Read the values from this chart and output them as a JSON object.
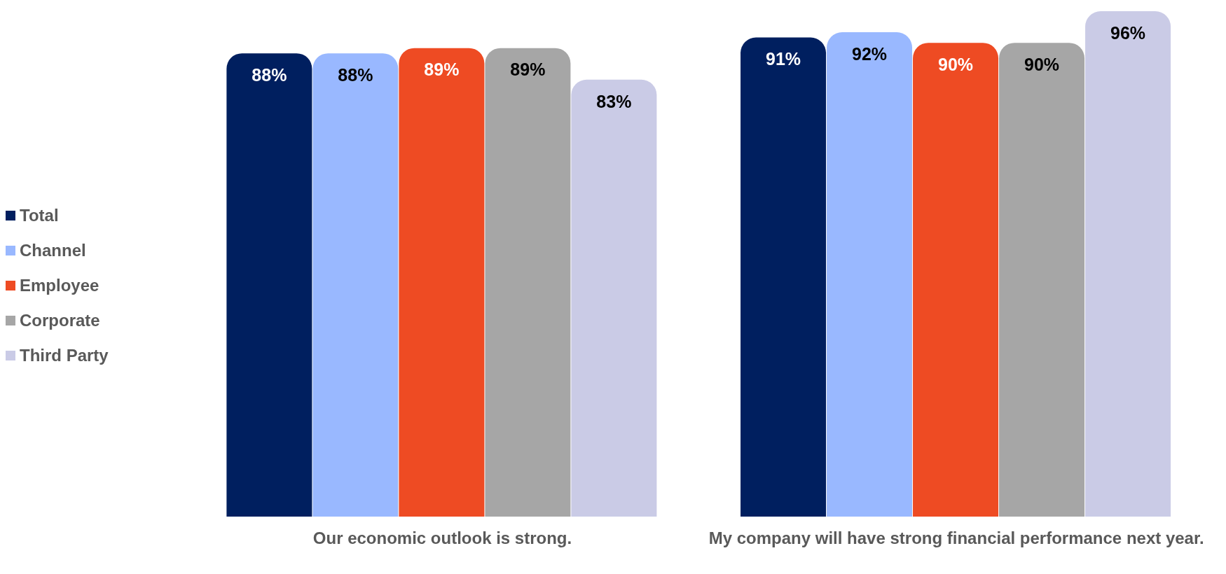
{
  "chart_data": {
    "type": "bar",
    "categories": [
      "Our economic outlook is strong.",
      "My company will have strong financial performance next year."
    ],
    "series": [
      {
        "name": "Total",
        "color": "#001f5f",
        "values": [
          88,
          91
        ],
        "value_labels": [
          "88%",
          "91%"
        ]
      },
      {
        "name": "Channel",
        "color": "#99b8ff",
        "values": [
          88,
          92
        ],
        "value_labels": [
          "88%",
          "92%"
        ]
      },
      {
        "name": "Employee",
        "color": "#ee4b23",
        "values": [
          89,
          90
        ],
        "value_labels": [
          "89%",
          "90%"
        ]
      },
      {
        "name": "Corporate",
        "color": "#a6a6a6",
        "values": [
          89,
          90
        ],
        "value_labels": [
          "89%",
          "90%"
        ]
      },
      {
        "name": "Third Party",
        "color": "#cacbe6",
        "values": [
          83,
          96
        ],
        "value_labels": [
          "83%",
          "96%"
        ]
      }
    ],
    "legend": "left",
    "tick_labels": "x"
  }
}
